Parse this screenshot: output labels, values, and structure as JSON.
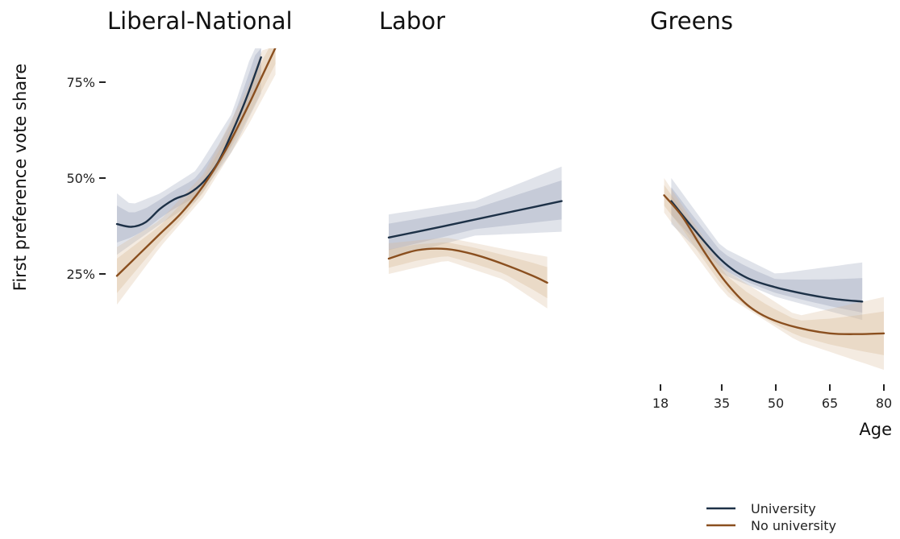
{
  "colors": {
    "university": "#1d3147",
    "no_university": "#8a4f1f"
  },
  "chart_data": {
    "type": "line",
    "ylabel": "First preference vote share",
    "xlabel": "Age",
    "x_ticks": [
      18,
      35,
      50,
      65,
      80
    ],
    "y_ticks": [
      "25%",
      "50%",
      "75%"
    ],
    "y_tick_values": [
      25,
      50,
      75
    ],
    "legend": {
      "position": "bottom-right",
      "entries": [
        "University",
        "No university"
      ]
    },
    "panels": [
      {
        "title": "Liberal-National",
        "series": [
          {
            "name": "University",
            "color": "#1d3147",
            "points": [
              [
                18,
                38
              ],
              [
                22,
                37.3
              ],
              [
                26,
                38.5
              ],
              [
                30,
                42
              ],
              [
                34,
                44.5
              ],
              [
                38,
                46
              ],
              [
                42,
                49
              ],
              [
                46,
                54
              ],
              [
                50,
                62
              ],
              [
                54,
                71
              ],
              [
                58,
                81.5
              ]
            ],
            "band_lo": [
              [
                18,
                30
              ],
              [
                30,
                38
              ],
              [
                40,
                44
              ],
              [
                50,
                57
              ],
              [
                58,
                72
              ]
            ],
            "band_hi": [
              [
                18,
                46
              ],
              [
                22,
                43
              ],
              [
                30,
                46
              ],
              [
                40,
                52
              ],
              [
                50,
                67
              ],
              [
                58,
                90
              ]
            ]
          },
          {
            "name": "No university",
            "color": "#8a4f1f",
            "points": [
              [
                18,
                24.5
              ],
              [
                24,
                30
              ],
              [
                30,
                35.5
              ],
              [
                36,
                41
              ],
              [
                42,
                48
              ],
              [
                48,
                57
              ],
              [
                54,
                68
              ],
              [
                58,
                76
              ],
              [
                62,
                84
              ]
            ],
            "band_lo": [
              [
                18,
                17
              ],
              [
                30,
                32
              ],
              [
                42,
                45
              ],
              [
                54,
                63
              ],
              [
                62,
                77
              ]
            ],
            "band_hi": [
              [
                18,
                32
              ],
              [
                30,
                39
              ],
              [
                42,
                51
              ],
              [
                54,
                73
              ],
              [
                62,
                92
              ]
            ]
          }
        ]
      },
      {
        "title": "Labor",
        "series": [
          {
            "name": "University",
            "color": "#1d3147",
            "points": [
              [
                18,
                34.5
              ],
              [
                30,
                36.8
              ],
              [
                42,
                39.2
              ],
              [
                54,
                41.6
              ],
              [
                66,
                44
              ]
            ],
            "band_lo": [
              [
                18,
                29
              ],
              [
                42,
                35
              ],
              [
                66,
                36
              ]
            ],
            "band_hi": [
              [
                18,
                40.5
              ],
              [
                42,
                44
              ],
              [
                66,
                53
              ]
            ]
          },
          {
            "name": "No university",
            "color": "#8a4f1f",
            "points": [
              [
                18,
                29
              ],
              [
                26,
                31.2
              ],
              [
                34,
                31.5
              ],
              [
                42,
                30
              ],
              [
                50,
                27.5
              ],
              [
                58,
                24.5
              ],
              [
                62,
                22.7
              ]
            ],
            "band_lo": [
              [
                18,
                25
              ],
              [
                34,
                28.5
              ],
              [
                50,
                23.5
              ],
              [
                62,
                16
              ]
            ],
            "band_hi": [
              [
                18,
                33
              ],
              [
                34,
                34.5
              ],
              [
                50,
                31.5
              ],
              [
                62,
                29.5
              ]
            ]
          }
        ]
      },
      {
        "title": "Greens",
        "series": [
          {
            "name": "University",
            "color": "#1d3147",
            "points": [
              [
                21,
                44
              ],
              [
                27,
                37
              ],
              [
                35,
                28.5
              ],
              [
                42,
                24
              ],
              [
                50,
                21.5
              ],
              [
                58,
                19.8
              ],
              [
                66,
                18.5
              ],
              [
                74,
                17.8
              ]
            ],
            "band_lo": [
              [
                21,
                38
              ],
              [
                35,
                25
              ],
              [
                50,
                19
              ],
              [
                74,
                13
              ]
            ],
            "band_hi": [
              [
                21,
                50
              ],
              [
                35,
                32
              ],
              [
                50,
                25
              ],
              [
                74,
                28
              ]
            ]
          },
          {
            "name": "No university",
            "color": "#8a4f1f",
            "points": [
              [
                19,
                45.5
              ],
              [
                24,
                40
              ],
              [
                30,
                31
              ],
              [
                36,
                23
              ],
              [
                42,
                17
              ],
              [
                48,
                13.5
              ],
              [
                56,
                11
              ],
              [
                65,
                9.5
              ],
              [
                73,
                9.3
              ],
              [
                80,
                9.5
              ]
            ],
            "band_lo": [
              [
                19,
                41
              ],
              [
                36,
                19.5
              ],
              [
                56,
                7.5
              ],
              [
                80,
                0
              ]
            ],
            "band_hi": [
              [
                19,
                50
              ],
              [
                36,
                26
              ],
              [
                56,
                14
              ],
              [
                80,
                19
              ]
            ]
          }
        ]
      }
    ]
  }
}
